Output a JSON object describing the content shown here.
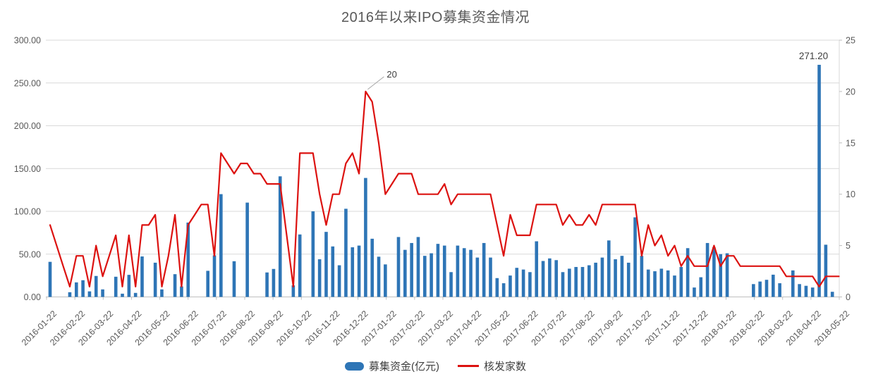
{
  "title": "2016年以来IPO募集资金情况",
  "legend": {
    "funds_label": "募集资金(亿元)",
    "approvals_label": "核发家数"
  },
  "chart_data": {
    "type": "bar",
    "subtype": "combo-bar-line-dual-axis",
    "title": "2016年以来IPO募集资金情况",
    "x_labels": [
      "2016-01-22",
      "2016-02-22",
      "2016-03-22",
      "2016-04-22",
      "2016-05-22",
      "2016-06-22",
      "2016-07-22",
      "2016-08-22",
      "2016-09-22",
      "2016-10-22",
      "2016-11-22",
      "2016-12-22",
      "2017-01-22",
      "2017-02-22",
      "2017-03-22",
      "2017-04-22",
      "2017-05-22",
      "2017-06-22",
      "2017-07-22",
      "2017-08-22",
      "2017-09-22",
      "2017-10-22",
      "2017-11-22",
      "2017-12-22",
      "2018-01-22",
      "2018-02-22",
      "2018-03-22",
      "2018-04-22",
      "2018-05-22"
    ],
    "left_axis": {
      "min": 0,
      "max": 300,
      "step": 50,
      "tick_labels": [
        "300.00",
        "250.00",
        "200.00",
        "150.00",
        "100.00",
        "50.00",
        "0.00"
      ]
    },
    "right_axis": {
      "min": 0,
      "max": 25,
      "step": 5,
      "tick_labels": [
        "25",
        "20",
        "15",
        "10",
        "5",
        "0"
      ]
    },
    "grid": "horizontal",
    "legend_position": "bottom",
    "series": [
      {
        "name": "募集资金(亿元)",
        "type": "bar",
        "axis": "left",
        "color": "#2E75B6",
        "values": [
          41,
          0,
          0,
          5.5,
          17,
          19.5,
          6.5,
          24.5,
          8.8,
          0,
          23.6,
          3.8,
          25.8,
          4.7,
          47.3,
          0,
          40,
          8.8,
          0,
          26.6,
          12.3,
          86.9,
          0,
          0,
          30.5,
          48.6,
          120.1,
          0,
          41.7,
          0,
          110.2,
          0,
          0,
          28.6,
          32.7,
          140.9,
          0,
          13.5,
          73,
          0,
          100,
          44,
          76,
          59,
          37,
          103,
          58,
          60,
          139,
          68,
          47,
          38,
          0,
          70,
          55,
          63,
          70,
          48,
          51,
          62,
          60,
          29,
          60,
          57,
          55,
          46,
          63,
          46,
          22,
          16,
          25,
          34,
          32,
          29,
          65,
          42,
          45,
          43,
          29,
          33,
          35,
          35,
          37,
          40,
          46,
          66,
          44,
          48,
          40,
          93,
          48,
          32,
          30,
          33,
          31,
          25,
          35,
          57,
          11,
          23,
          63,
          58,
          50,
          51,
          0,
          0,
          0,
          15,
          18,
          20,
          26,
          16,
          0,
          31,
          15,
          13,
          11,
          271.2,
          61,
          6,
          0
        ]
      },
      {
        "name": "核发家数",
        "type": "line",
        "axis": "right",
        "color": "#C00000",
        "line_color_rendered": "#DC1210",
        "values": [
          7,
          5,
          3,
          1,
          4,
          4,
          1,
          5,
          2,
          4,
          6,
          1,
          6,
          1,
          7,
          7,
          8,
          1,
          4,
          8,
          1,
          7,
          8,
          9,
          9,
          4,
          14,
          13,
          12,
          13,
          13,
          12,
          12,
          11,
          11,
          11,
          6,
          1,
          14,
          14,
          14,
          10,
          7,
          10,
          10,
          13,
          14,
          12,
          20,
          19,
          15,
          10,
          11,
          12,
          12,
          12,
          10,
          10,
          10,
          10,
          11,
          9,
          10,
          10,
          10,
          10,
          10,
          10,
          7,
          4,
          8,
          6,
          6,
          6,
          9,
          9,
          9,
          9,
          7,
          8,
          7,
          7,
          8,
          7,
          9,
          9,
          9,
          9,
          9,
          9,
          4,
          7,
          5,
          6,
          4,
          5,
          3,
          4,
          3,
          3,
          3,
          5,
          3,
          4,
          4,
          3,
          3,
          3,
          3,
          3,
          3,
          3,
          2,
          2,
          2,
          2,
          2,
          1,
          2,
          2,
          2
        ]
      }
    ],
    "annotations": [
      {
        "text": "20",
        "series": 1,
        "point": 48,
        "leader": true
      },
      {
        "text": "271.20",
        "series": 0,
        "point": 117,
        "leader": false
      }
    ],
    "colors": {
      "bar": "#2E75B6",
      "line": "#DC1210",
      "gridline": "#D9D9D9",
      "axis_line": "#BFBFBF",
      "axis_text": "#595959",
      "annotation_text": "#404040",
      "leader_line": "#A6A6A6",
      "title_text": "#595959"
    }
  }
}
